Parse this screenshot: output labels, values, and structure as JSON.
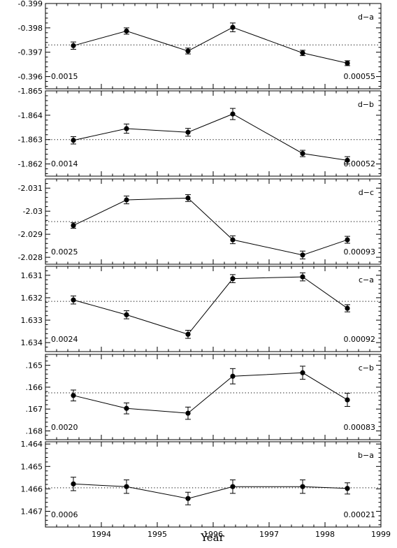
{
  "chart_data": {
    "type": "scatter",
    "xlabel": "Year",
    "xlim": [
      1993,
      1999
    ],
    "x_ticks": [
      1994,
      1995,
      1996,
      1997,
      1998,
      1999
    ],
    "x_tick_labels": [
      "1994",
      "1995",
      "1996",
      "1997",
      "1998",
      "1999"
    ],
    "shared_x": true,
    "y_inverted": true,
    "grid": false,
    "panels": [
      {
        "label": "d−a",
        "ylim": [
          -0.3955,
          -0.399
        ],
        "ref_line": -0.3973,
        "y_ticks": [
          -0.399,
          -0.398,
          -0.397,
          -0.396
        ],
        "y_tick_labels": [
          "-0.399",
          "-0.398",
          "-0.397",
          "-0.396"
        ],
        "left_note": "0.0015",
        "right_note": "0.00055",
        "x": [
          1993.5,
          1994.45,
          1995.55,
          1996.35,
          1997.6,
          1998.4
        ],
        "y": [
          -0.39727,
          -0.39787,
          -0.39705,
          -0.39802,
          -0.39697,
          -0.39655
        ],
        "err": [
          0.00015,
          0.00013,
          0.00012,
          0.00018,
          0.00011,
          0.0001
        ]
      },
      {
        "label": "d−b",
        "ylim": [
          -1.8615,
          -1.865
        ],
        "ref_line": -1.863,
        "y_ticks": [
          -1.865,
          -1.864,
          -1.863,
          -1.862
        ],
        "y_tick_labels": [
          "-1.865",
          "-1.864",
          "-1.863",
          "-1.862"
        ],
        "left_note": "0.0014",
        "right_note": "0.00052",
        "x": [
          1993.5,
          1994.45,
          1995.55,
          1996.35,
          1997.6,
          1998.4
        ],
        "y": [
          -1.86297,
          -1.86345,
          -1.8633,
          -1.86405,
          -1.86243,
          -1.86215
        ],
        "err": [
          0.00015,
          0.00019,
          0.00016,
          0.00023,
          0.00013,
          0.00015
        ]
      },
      {
        "label": "d−c",
        "ylim": [
          -2.0277,
          -2.0314
        ],
        "ref_line": -2.02955,
        "y_ticks": [
          -2.031,
          -2.03,
          -2.029,
          -2.028
        ],
        "y_tick_labels": [
          "-2.031",
          "-2.03",
          "-2.029",
          "-2.028"
        ],
        "left_note": "0.0025",
        "right_note": "0.00093",
        "x": [
          1993.5,
          1994.45,
          1995.55,
          1996.35,
          1997.6,
          1998.4
        ],
        "y": [
          -2.02938,
          -2.03049,
          -2.03057,
          -2.02876,
          -2.0281,
          -2.02876
        ],
        "err": [
          0.00012,
          0.00017,
          0.00015,
          0.00017,
          0.00017,
          0.00015
        ]
      },
      {
        "label": "c−a",
        "ylim": [
          1.6344,
          1.6306
        ],
        "ref_line": 1.63216,
        "y_ticks": [
          1.631,
          1.632,
          1.633,
          1.634
        ],
        "y_tick_labels": [
          "1.631",
          "1.632",
          "1.633",
          "1.634"
        ],
        "left_note": "0.0024",
        "right_note": "0.00092",
        "x": [
          1993.5,
          1994.45,
          1995.55,
          1996.35,
          1997.6,
          1998.4
        ],
        "y": [
          1.6321,
          1.63276,
          1.63363,
          1.63115,
          1.63107,
          1.63247
        ],
        "err": [
          0.00018,
          0.00018,
          0.00018,
          0.00018,
          0.00018,
          0.00016
        ]
      },
      {
        "label": "c−b",
        "ylim": [
          1.1684,
          1.1645
        ],
        "ref_line": 1.16626,
        "y_ticks": [
          1.165,
          1.166,
          1.167,
          1.168
        ],
        "y_tick_labels": [
          ".165",
          ".166",
          ".167",
          ".168"
        ],
        "left_note": "0.0020",
        "right_note": "0.00083",
        "x": [
          1993.5,
          1994.45,
          1995.55,
          1996.35,
          1997.6,
          1998.4
        ],
        "y": [
          1.16638,
          1.16697,
          1.16719,
          1.1655,
          1.16534,
          1.16658
        ],
        "err": [
          0.00025,
          0.00025,
          0.00028,
          0.00035,
          0.0003,
          0.0003
        ]
      },
      {
        "label": "b−a",
        "ylim": [
          1.4677,
          1.4639
        ],
        "ref_line": 1.46595,
        "y_ticks": [
          1.464,
          1.465,
          1.466,
          1.467
        ],
        "y_tick_labels": [
          "1.464",
          "1.465",
          "1.466",
          "1.467"
        ],
        "left_note": "0.0006",
        "right_note": "0.00021",
        "x": [
          1993.5,
          1994.45,
          1995.55,
          1996.35,
          1997.6,
          1998.4
        ],
        "y": [
          1.46578,
          1.4659,
          1.46643,
          1.4659,
          1.4659,
          1.46598
        ],
        "err": [
          0.0003,
          0.0003,
          0.00028,
          0.0003,
          0.0003,
          0.00025
        ]
      }
    ]
  }
}
